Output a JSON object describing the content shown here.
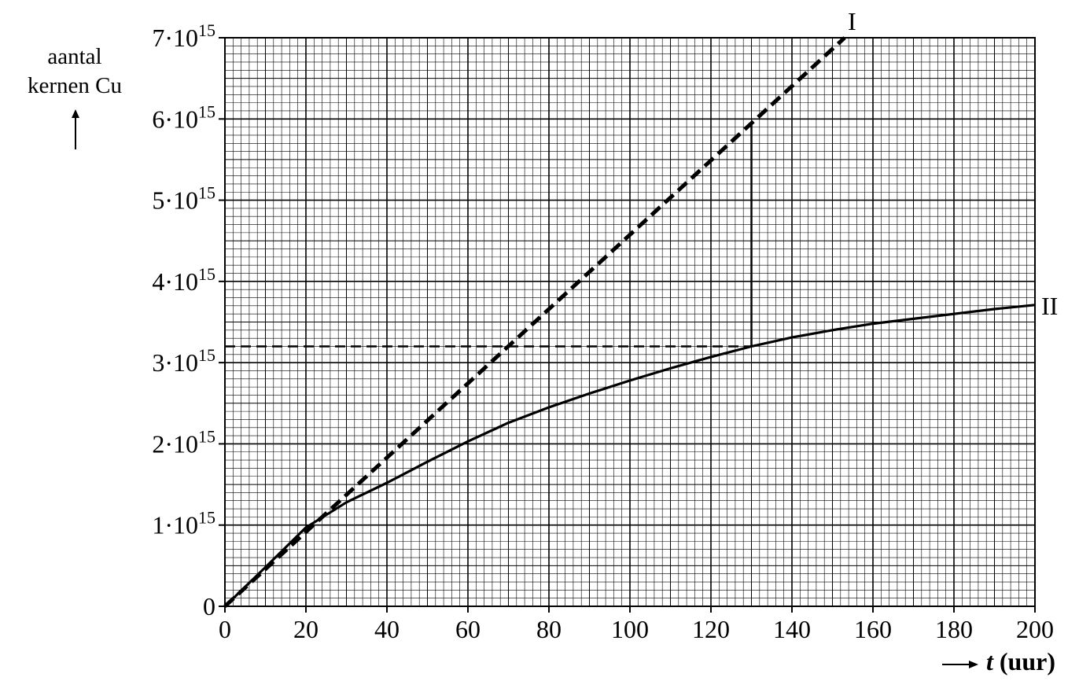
{
  "chart_data": {
    "type": "line",
    "ylabel_lines": [
      "aantal",
      "kernen Cu"
    ],
    "xlabel_var": "t",
    "xlabel_unit": "(uur)",
    "xlim": [
      0,
      200
    ],
    "ylim": [
      0,
      7000000000000000.0
    ],
    "grid": true,
    "x_ticks": [
      "0",
      "20",
      "40",
      "60",
      "80",
      "100",
      "120",
      "140",
      "160",
      "180",
      "200"
    ],
    "y_ticks": [
      {
        "base": "0",
        "exp": ""
      },
      {
        "base": "1·10",
        "exp": "15"
      },
      {
        "base": "2·10",
        "exp": "15"
      },
      {
        "base": "3·10",
        "exp": "15"
      },
      {
        "base": "4·10",
        "exp": "15"
      },
      {
        "base": "5·10",
        "exp": "15"
      },
      {
        "base": "6·10",
        "exp": "15"
      },
      {
        "base": "7·10",
        "exp": "15"
      }
    ],
    "series": [
      {
        "name": "I",
        "style": "dashed",
        "x": [
          0,
          153
        ],
        "y": [
          0,
          7000000000000000.0
        ]
      },
      {
        "name": "II",
        "style": "solid",
        "x": [
          0,
          10,
          20,
          30,
          40,
          50,
          60,
          70,
          80,
          90,
          100,
          110,
          120,
          130,
          140,
          150,
          160,
          170,
          180,
          190,
          200
        ],
        "y": [
          0,
          480000000000000.0,
          970000000000000.0,
          1280000000000000.0,
          1520000000000000.0,
          1780000000000000.0,
          2030000000000000.0,
          2260000000000000.0,
          2450000000000000.0,
          2620000000000000.0,
          2780000000000000.0,
          2930000000000000.0,
          3070000000000000.0,
          3200000000000000.0,
          3310000000000000.0,
          3400000000000000.0,
          3480000000000000.0,
          3540000000000000.0,
          3600000000000000.0,
          3660000000000000.0,
          3710000000000000.0
        ]
      }
    ],
    "annotations": [
      {
        "type": "hline-dashed",
        "y": 3200000000000000.0,
        "x_from": 0,
        "x_to": 130
      },
      {
        "type": "vline-solid",
        "x": 130,
        "y_from": 3200000000000000.0,
        "y_to": 5950000000000000.0
      }
    ]
  },
  "colors": {
    "ink": "#000000",
    "grid": "#000000",
    "background": "#ffffff"
  }
}
